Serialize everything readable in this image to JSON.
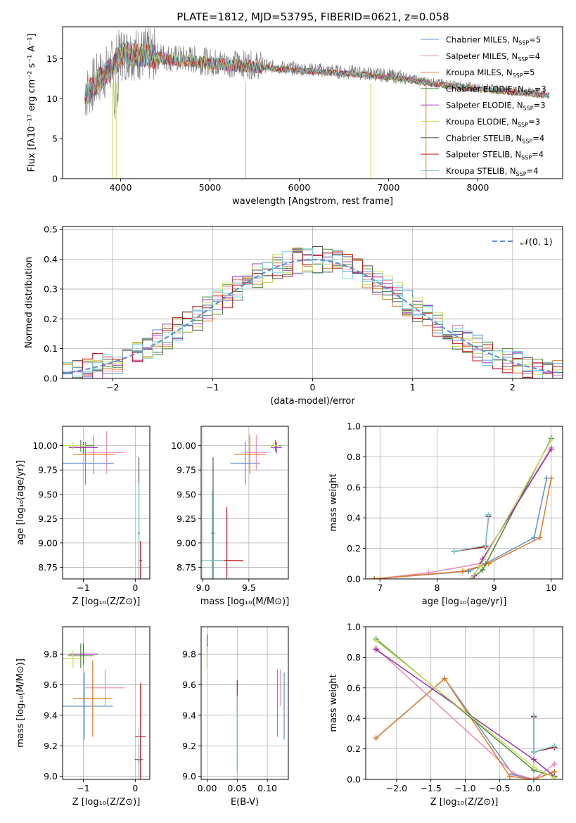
{
  "title": "PLATE=1812, MJD=53795, FIBERID=0621, z=0.058",
  "colors": {
    "Chabrier MILES": "#5f8fd6",
    "Salpeter MILES": "#e88ab8",
    "Kroupa MILES": "#e07b22",
    "Chabrier ELODIE": "#4c8a3a",
    "Salpeter ELODIE": "#9b2fb0",
    "Kroupa ELODIE": "#c8e05a",
    "Chabrier STELIB": "#555555",
    "Salpeter STELIB": "#c01818",
    "Kroupa STELIB": "#78d2d6",
    "data": "#808080",
    "normal": "#5f8fd6"
  },
  "chart_data": [
    {
      "panel": "spectrum",
      "type": "line",
      "xlabel": "wavelength [Angstrom, rest frame]",
      "ylabel": "Flux [fλ10⁻¹⁷ erg cm⁻² s⁻¹ A⁻¹]",
      "xlim": [
        3350,
        8950
      ],
      "ylim": [
        0,
        19
      ],
      "xticks": [
        "4000",
        "5000",
        "6000",
        "7000",
        "8000"
      ],
      "yticks": [
        "0",
        "5",
        "10",
        "15"
      ],
      "legend": "top-right",
      "legend_entries": [
        "Chabrier MILES, N_SSP=5",
        "Salpeter MILES, N_SSP=4",
        "Kroupa MILES, N_SSP=5",
        "Chabrier ELODIE, N_SSP=3",
        "Salpeter ELODIE, N_SSP=3",
        "Kroupa ELODIE, N_SSP=3",
        "Chabrier STELIB, N_SSP=4",
        "Salpeter STELIB, N_SSP=4",
        "Kroupa STELIB, N_SSP=4"
      ],
      "continuum_x": [
        3600,
        3750,
        3900,
        4000,
        4100,
        4200,
        4400,
        4600,
        4800,
        5000,
        5200,
        5400,
        5600,
        5800,
        6000,
        6200,
        6400,
        6600,
        6800,
        7000,
        7200,
        7400,
        7600,
        7800,
        8000,
        8200,
        8400,
        8600,
        8800
      ],
      "continuum_y": [
        10.5,
        12.5,
        14.0,
        15.5,
        15.8,
        15.6,
        15.4,
        15.0,
        14.9,
        14.6,
        14.4,
        14.3,
        14.1,
        13.9,
        13.7,
        13.6,
        13.4,
        13.3,
        13.1,
        12.9,
        12.6,
        12.2,
        11.9,
        11.6,
        11.4,
        11.2,
        11.0,
        10.8,
        10.6
      ]
    },
    {
      "panel": "residual histogram",
      "type": "line",
      "xlabel": "(data-model)/error",
      "ylabel": "Normed distribution",
      "xlim": [
        -2.5,
        2.5
      ],
      "ylim": [
        0,
        0.51
      ],
      "xticks": [
        "−2",
        "−1",
        "0",
        "1",
        "2"
      ],
      "yticks": [
        "0.0",
        "0.1",
        "0.2",
        "0.3",
        "0.4",
        "0.5"
      ],
      "legend": "top-right",
      "legend_entries": [
        "𝒩(0, 1)"
      ],
      "bin_width": 0.1
    },
    {
      "panel": "age vs Z",
      "type": "scatter",
      "xlabel": "Z [log₁₀(Z/Z⊙)]",
      "ylabel": "age  [log₁₀(age/yr)]",
      "xlim": [
        -1.4,
        0.28
      ],
      "ylim": [
        8.63,
        10.2
      ],
      "xticks": [
        "−1",
        "0"
      ],
      "yticks": [
        "8.75",
        "9.00",
        "9.25",
        "9.50",
        "9.75",
        "10.00"
      ],
      "points": [
        {
          "model": "Chabrier MILES",
          "x": -0.96,
          "xerr": 0.55,
          "y": 9.82,
          "yerr": 0.22
        },
        {
          "model": "Salpeter MILES",
          "x": -0.55,
          "xerr": 0.35,
          "y": 9.93,
          "yerr": 0.22
        },
        {
          "model": "Kroupa MILES",
          "x": -0.8,
          "xerr": 0.4,
          "y": 9.91,
          "yerr": 0.2
        },
        {
          "model": "Chabrier ELODIE",
          "x": -1.05,
          "xerr": 0.25,
          "y": 10.0,
          "yerr": 0.06
        },
        {
          "model": "Salpeter ELODIE",
          "x": -1.0,
          "xerr": 0.28,
          "y": 9.98,
          "yerr": 0.06
        },
        {
          "model": "Kroupa ELODIE",
          "x": -1.2,
          "xerr": 0.25,
          "y": 10.0,
          "yerr": 0.04
        },
        {
          "model": "Chabrier STELIB",
          "x": 0.07,
          "xerr": 0.02,
          "y": 9.1,
          "yerr": 0.78
        },
        {
          "model": "Salpeter STELIB",
          "x": 0.1,
          "xerr": 0.03,
          "y": 8.82,
          "yerr": 0.2
        },
        {
          "model": "Kroupa STELIB",
          "x": 0.07,
          "xerr": 0.02,
          "y": 8.82,
          "yerr": 0.8
        }
      ]
    },
    {
      "panel": "age vs mass",
      "type": "scatter",
      "xlabel": "mass [log₁₀(M/M⊙)]",
      "ylabel": "",
      "xlim": [
        8.98,
        9.93
      ],
      "ylim": [
        8.63,
        10.2
      ],
      "xticks": [
        "9.0",
        "9.5"
      ],
      "yticks": [
        "8.75",
        "9.00",
        "9.25",
        "9.50",
        "9.75",
        "10.00"
      ],
      "points": [
        {
          "model": "Chabrier MILES",
          "x": 9.46,
          "xerr": 0.16,
          "y": 9.82,
          "yerr": 0.22
        },
        {
          "model": "Salpeter MILES",
          "x": 9.58,
          "xerr": 0.12,
          "y": 9.93,
          "yerr": 0.18
        },
        {
          "model": "Kroupa MILES",
          "x": 9.51,
          "xerr": 0.17,
          "y": 9.91,
          "yerr": 0.2
        },
        {
          "model": "Chabrier ELODIE",
          "x": 9.79,
          "xerr": 0.06,
          "y": 10.0,
          "yerr": 0.06
        },
        {
          "model": "Salpeter ELODIE",
          "x": 9.8,
          "xerr": 0.06,
          "y": 9.98,
          "yerr": 0.06
        },
        {
          "model": "Kroupa ELODIE",
          "x": 9.77,
          "xerr": 0.06,
          "y": 10.0,
          "yerr": 0.04
        },
        {
          "model": "Chabrier STELIB",
          "x": 9.11,
          "xerr": 0.02,
          "y": 9.1,
          "yerr": 0.78
        },
        {
          "model": "Salpeter STELIB",
          "x": 9.26,
          "xerr": 0.18,
          "y": 8.82,
          "yerr": 0.55
        },
        {
          "model": "Kroupa STELIB",
          "x": 9.1,
          "xerr": 0.13,
          "y": 8.82,
          "yerr": 0.72
        }
      ]
    },
    {
      "panel": "mass weight vs age",
      "type": "line",
      "xlabel": "age  [log₁₀(age/yr)]",
      "ylabel": "mass weight",
      "xlim": [
        6.75,
        10.2
      ],
      "ylim": [
        0,
        1.0
      ],
      "xticks": [
        "7",
        "8",
        "9",
        "10"
      ],
      "yticks": [
        "0.0",
        "0.2",
        "0.4",
        "0.6",
        "0.8",
        "1.0"
      ],
      "series": [
        {
          "model": "Chabrier MILES",
          "x": [
            6.9,
            8.55,
            8.85,
            9.7,
            9.92
          ],
          "y": [
            0.0,
            0.05,
            0.1,
            0.27,
            0.66
          ]
        },
        {
          "model": "Salpeter MILES",
          "x": [
            6.9,
            7.85,
            8.75,
            10.0
          ],
          "y": [
            0.0,
            0.04,
            0.1,
            0.86
          ]
        },
        {
          "model": "Kroupa MILES",
          "x": [
            6.9,
            8.45,
            8.9,
            9.8,
            10.0
          ],
          "y": [
            0.0,
            0.05,
            0.1,
            0.27,
            0.66
          ]
        },
        {
          "model": "Chabrier ELODIE",
          "x": [
            8.6,
            8.8,
            10.0
          ],
          "y": [
            0.0,
            0.06,
            0.92
          ]
        },
        {
          "model": "Salpeter ELODIE",
          "x": [
            8.65,
            8.8,
            10.0
          ],
          "y": [
            0.02,
            0.13,
            0.85
          ]
        },
        {
          "model": "Kroupa ELODIE",
          "x": [
            8.6,
            8.75,
            10.0
          ],
          "y": [
            0.0,
            0.08,
            0.91
          ]
        },
        {
          "model": "Chabrier STELIB",
          "x": [
            8.3,
            8.85,
            8.9
          ],
          "y": [
            0.18,
            0.21,
            0.41
          ]
        },
        {
          "model": "Salpeter STELIB",
          "x": [
            8.3,
            8.85,
            8.9
          ],
          "y": [
            0.18,
            0.21,
            0.41
          ]
        },
        {
          "model": "Kroupa STELIB",
          "x": [
            8.3,
            8.85,
            8.9
          ],
          "y": [
            0.18,
            0.22,
            0.42
          ]
        }
      ]
    },
    {
      "panel": "mass vs Z",
      "type": "scatter",
      "xlabel": "Z [log₁₀(Z/Z⊙)]",
      "ylabel": "mass [log₁₀(M/M⊙)]",
      "xlim": [
        -1.4,
        0.28
      ],
      "ylim": [
        8.98,
        9.98
      ],
      "xticks": [
        "−1",
        "0"
      ],
      "yticks": [
        "9.0",
        "9.2",
        "9.4",
        "9.6",
        "9.8"
      ],
      "points": [
        {
          "model": "Chabrier MILES",
          "x": -0.98,
          "xerr": 0.55,
          "y": 9.46,
          "yerr": 0.22
        },
        {
          "model": "Salpeter MILES",
          "x": -0.58,
          "xerr": 0.38,
          "y": 9.58,
          "yerr": 0.12
        },
        {
          "model": "Kroupa MILES",
          "x": -0.82,
          "xerr": 0.38,
          "y": 9.51,
          "yerr": 0.25
        },
        {
          "model": "Chabrier ELODIE",
          "x": -1.05,
          "xerr": 0.25,
          "y": 9.79,
          "yerr": 0.08
        },
        {
          "model": "Salpeter ELODIE",
          "x": -1.0,
          "xerr": 0.28,
          "y": 9.8,
          "yerr": 0.07
        },
        {
          "model": "Kroupa ELODIE",
          "x": -1.2,
          "xerr": 0.25,
          "y": 9.77,
          "yerr": 0.06
        },
        {
          "model": "Chabrier STELIB",
          "x": 0.07,
          "xerr": 0.08,
          "y": 9.11,
          "yerr": 0.1
        },
        {
          "model": "Salpeter STELIB",
          "x": 0.1,
          "xerr": 0.1,
          "y": 9.26,
          "yerr": 0.35
        },
        {
          "model": "Kroupa STELIB",
          "x": 0.07,
          "xerr": 0.02,
          "y": 9.1,
          "yerr": 0.22
        }
      ]
    },
    {
      "panel": "mass vs E(B-V)",
      "type": "scatter",
      "xlabel": "E(B-V)",
      "ylabel": "",
      "xlim": [
        -0.01,
        0.135
      ],
      "ylim": [
        8.98,
        9.98
      ],
      "xticks": [
        "0.00",
        "0.05",
        "0.10"
      ],
      "yticks": [
        "9.0",
        "9.2",
        "9.4",
        "9.6",
        "9.8"
      ],
      "points": [
        {
          "model": "Chabrier MILES",
          "x": 0.128,
          "y": 9.46,
          "yerr": 0.22
        },
        {
          "model": "Salpeter MILES",
          "x": 0.122,
          "y": 9.58,
          "yerr": 0.12
        },
        {
          "model": "Kroupa MILES",
          "x": 0.117,
          "y": 9.48,
          "yerr": 0.22
        },
        {
          "model": "Chabrier ELODIE",
          "x": 0.0,
          "y": 9.79,
          "yerr": 0.08
        },
        {
          "model": "Salpeter ELODIE",
          "x": 0.0,
          "y": 9.86,
          "yerr": 0.07
        },
        {
          "model": "Kroupa ELODIE",
          "x": 0.0,
          "y": 9.77,
          "yerr": 0.08
        },
        {
          "model": "Chabrier STELIB",
          "x": 0.05,
          "y": 9.25,
          "yerr": 0.22
        },
        {
          "model": "Salpeter STELIB",
          "x": 0.05,
          "y": 9.53,
          "yerr": 0.1
        },
        {
          "model": "Kroupa STELIB",
          "x": 0.05,
          "y": 9.28,
          "yerr": 0.25
        }
      ]
    },
    {
      "panel": "mass weight vs Z",
      "type": "line",
      "xlabel": "Z [log₁₀(Z/Z⊙)]",
      "ylabel": "mass weight",
      "xlim": [
        -2.45,
        0.42
      ],
      "ylim": [
        0,
        1.0
      ],
      "xticks": [
        "−2.0",
        "−1.5",
        "−1.0",
        "−0.5",
        "0.0"
      ],
      "yticks": [
        "0.0",
        "0.2",
        "0.4",
        "0.6",
        "0.8",
        "1.0"
      ],
      "series": [
        {
          "model": "Chabrier MILES",
          "x": [
            -2.3,
            -1.3,
            -0.3,
            0.0,
            0.3
          ],
          "y": [
            0.27,
            0.66,
            0.03,
            0.0,
            0.05
          ]
        },
        {
          "model": "Salpeter MILES",
          "x": [
            -2.3,
            -0.3,
            0.0,
            0.3
          ],
          "y": [
            0.86,
            0.04,
            0.0,
            0.1
          ]
        },
        {
          "model": "Kroupa MILES",
          "x": [
            -2.3,
            -1.3,
            -0.35,
            0.0,
            0.3
          ],
          "y": [
            0.27,
            0.66,
            0.02,
            0.0,
            0.05
          ]
        },
        {
          "model": "Chabrier ELODIE",
          "x": [
            -2.3,
            0.0,
            0.3
          ],
          "y": [
            0.92,
            0.06,
            0.02
          ]
        },
        {
          "model": "Salpeter ELODIE",
          "x": [
            -2.3,
            0.0,
            0.3
          ],
          "y": [
            0.85,
            0.13,
            0.02
          ]
        },
        {
          "model": "Kroupa ELODIE",
          "x": [
            -2.3,
            0.0,
            0.3
          ],
          "y": [
            0.91,
            0.08,
            0.01
          ]
        },
        {
          "model": "Chabrier STELIB",
          "x": [
            0.0,
            0.0,
            0.3
          ],
          "y": [
            0.41,
            0.18,
            0.21
          ]
        },
        {
          "model": "Salpeter STELIB",
          "x": [
            0.0,
            0.0,
            0.3
          ],
          "y": [
            0.41,
            0.18,
            0.21
          ]
        },
        {
          "model": "Kroupa STELIB",
          "x": [
            0.0,
            0.0,
            0.3
          ],
          "y": [
            0.42,
            0.18,
            0.22
          ]
        }
      ]
    }
  ]
}
